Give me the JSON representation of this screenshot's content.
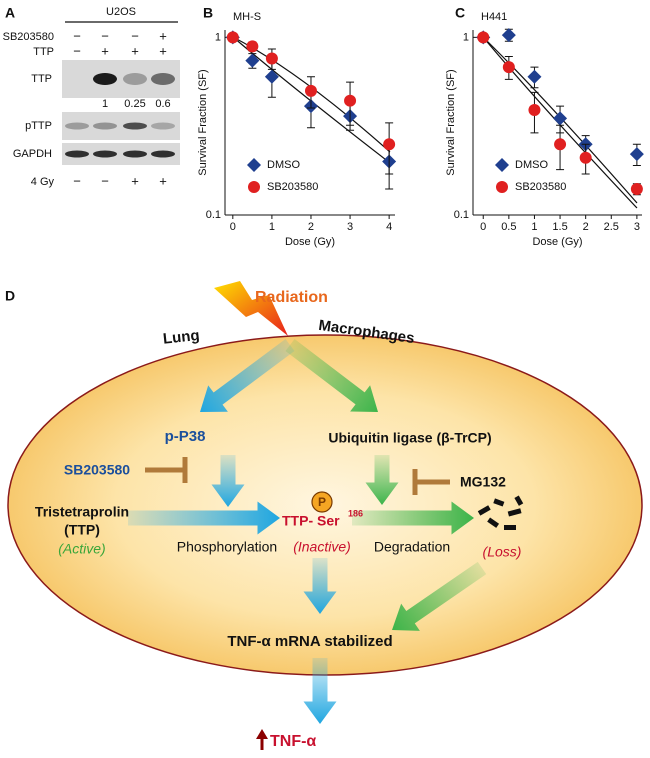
{
  "panel_labels": [
    "A",
    "B",
    "C",
    "D"
  ],
  "blot": {
    "cell_line": "U2OS",
    "conditions": [
      {
        "label": "SB203580",
        "signs": [
          "−",
          "−",
          "−",
          "+"
        ]
      },
      {
        "label": "TTP",
        "signs": [
          "−",
          "+",
          "+",
          "+"
        ]
      }
    ],
    "bands": [
      "TTP",
      "pTTP",
      "GAPDH"
    ],
    "ratios": [
      1,
      0.25,
      0.6
    ],
    "treatment": {
      "label": "4 Gy",
      "signs": [
        "−",
        "−",
        "+",
        "+"
      ]
    }
  },
  "chart_data": [
    {
      "type": "scatter",
      "title": "MH-S",
      "x_label": "Dose (Gy)",
      "y_label": "Survival Fraction (SF)",
      "x": [
        0,
        0.5,
        1,
        2,
        3,
        4
      ],
      "xlim": [
        -0.2,
        4.15
      ],
      "xticks": [
        0,
        1,
        2,
        3,
        4
      ],
      "ylim": [
        0.1,
        1.1
      ],
      "yticks": [
        0.1,
        1
      ],
      "log_scale": "y",
      "legend": "lower left",
      "series": [
        {
          "name": "DMSO",
          "color": "#1f3f8f",
          "marker": "diamond",
          "values": [
            1,
            0.74,
            0.6,
            0.41,
            0.36,
            0.2
          ],
          "errors": [
            0,
            0.07,
            0.14,
            0.1,
            0.06,
            0.06
          ]
        },
        {
          "name": "SB203580",
          "color": "#e02020",
          "marker": "circle",
          "values": [
            1,
            0.89,
            0.76,
            0.5,
            0.44,
            0.25
          ],
          "errors": [
            0,
            0.05,
            0.1,
            0.1,
            0.12,
            0.08
          ]
        }
      ]
    },
    {
      "type": "scatter",
      "title": "H441",
      "x_label": "Dose (Gy)",
      "y_label": "Survival Fraction (SF)",
      "x": [
        0,
        0.5,
        1,
        1.5,
        2,
        3
      ],
      "xlim": [
        -0.2,
        3.1
      ],
      "xticks": [
        0,
        0.5,
        1,
        1.5,
        2,
        2.5,
        3
      ],
      "ylim": [
        0.1,
        1.1
      ],
      "yticks": [
        0.1,
        1
      ],
      "log_scale": "y",
      "legend": "lower left",
      "series": [
        {
          "name": "DMSO",
          "color": "#1f3f8f",
          "marker": "diamond",
          "values": [
            1,
            1.03,
            0.6,
            0.35,
            0.25,
            0.22
          ],
          "errors": [
            0,
            0.08,
            0.08,
            0.06,
            0.03,
            0.03
          ]
        },
        {
          "name": "SB203580",
          "color": "#e02020",
          "marker": "circle",
          "values": [
            1,
            0.68,
            0.39,
            0.25,
            0.21,
            0.14
          ],
          "errors": [
            0,
            0.1,
            0.1,
            0.07,
            0.04,
            0.01
          ]
        }
      ]
    }
  ],
  "diagram": {
    "stimulus": "Radiation",
    "context": [
      "Lung",
      "Macrophages"
    ],
    "kinase": "p-P38",
    "ligase": "Ubiquitin ligase (β-TrCP)",
    "inhibitors": [
      "SB203580",
      "MG132"
    ],
    "substrate": {
      "name": "Tristetraprolin",
      "abbr": "(TTP)",
      "state": "(Active)"
    },
    "steps": [
      "Phosphorylation",
      "Degradation"
    ],
    "product": {
      "name": "TTP- Ser",
      "site": "186",
      "phospho": "P",
      "state": "(Inactive)"
    },
    "loss": "(Loss)",
    "outcome": "TNF-α mRNA stabilized",
    "result": "TNF-α"
  }
}
